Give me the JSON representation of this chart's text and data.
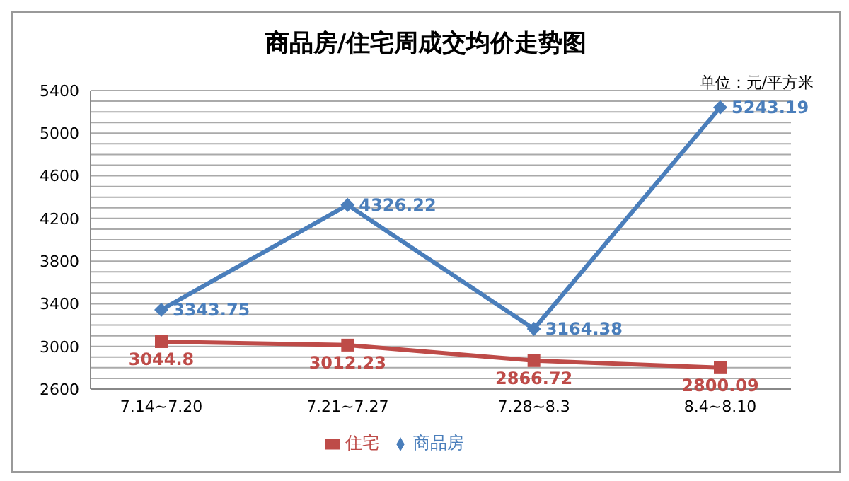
{
  "chart_data": {
    "type": "line",
    "title": "商品房/住宅周成交均价走势图",
    "annotations": [
      "单位：元/平方米"
    ],
    "categories": [
      "7.14~7.20",
      "7.21~7.27",
      "7.28~8.3",
      "8.4~8.10"
    ],
    "series": [
      {
        "name": "商品房",
        "color": "#4a7ebb",
        "values": [
          3343.75,
          4326.22,
          3164.38,
          5243.19
        ],
        "marker": "diamond"
      },
      {
        "name": "住宅",
        "color": "#be4b48",
        "values": [
          3044.8,
          3012.23,
          2866.72,
          2800.09
        ],
        "marker": "square"
      }
    ],
    "ylim": [
      2600,
      5400
    ],
    "yticks": [
      2600,
      {
        "value": 2700,
        "label": null
      },
      {
        "value": 2800,
        "label": null
      },
      {
        "value": 2900,
        "label": null
      },
      3000,
      {
        "value": 3100,
        "label": null
      },
      {
        "value": 3200,
        "label": null
      },
      {
        "value": 3300,
        "label": null
      },
      3400,
      {
        "value": 3500,
        "label": null
      },
      {
        "value": 3600,
        "label": null
      },
      {
        "value": 3700,
        "label": null
      },
      3800,
      {
        "value": 3900,
        "label": null
      },
      {
        "value": 4000,
        "label": null
      },
      {
        "value": 4100,
        "label": null
      },
      4200,
      {
        "value": 4300,
        "label": null
      },
      {
        "value": 4400,
        "label": null
      },
      {
        "value": 4500,
        "label": null
      },
      4600,
      {
        "value": 4700,
        "label": null
      },
      {
        "value": 4800,
        "label": null
      },
      {
        "value": 4900,
        "label": null
      },
      5000,
      {
        "value": 5100,
        "label": null
      },
      {
        "value": 5200,
        "label": null
      },
      {
        "value": 5300,
        "label": null
      },
      5400
    ],
    "grid": "y",
    "legend": "bottom",
    "data_labels": true,
    "line_style": "solid"
  }
}
